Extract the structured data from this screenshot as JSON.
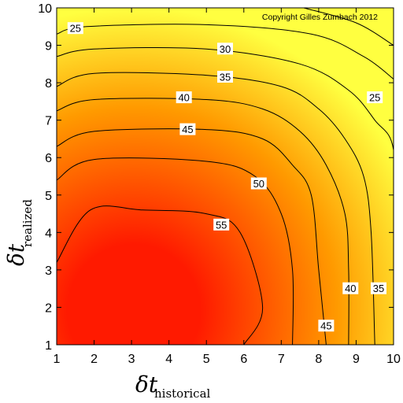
{
  "chart_data": {
    "type": "heatmap",
    "subtype": "filled-contour",
    "title": "",
    "annotation": "Copyright Gilles Zumbach 2012",
    "xlabel": {
      "symbol": "δt",
      "subscript": "historical"
    },
    "ylabel": {
      "symbol": "δt",
      "subscript": "realized"
    },
    "xlim": [
      1,
      10
    ],
    "ylim": [
      1,
      10
    ],
    "xticks": [
      1,
      2,
      3,
      4,
      5,
      6,
      7,
      8,
      9,
      10
    ],
    "yticks": [
      1,
      2,
      3,
      4,
      5,
      6,
      7,
      8,
      9,
      10
    ],
    "grid": false,
    "colormap": {
      "low": "#ffff40",
      "mid": "#ff9a00",
      "high": "#ff1a00"
    },
    "value_range": [
      20,
      57
    ],
    "contour_levels": [
      {
        "level": 55,
        "label": "55",
        "label_at": [
          5.4,
          4.2
        ],
        "points": [
          [
            1.0,
            3.2
          ],
          [
            1.9,
            4.6
          ],
          [
            3.3,
            4.6
          ],
          [
            5.0,
            4.5
          ],
          [
            5.9,
            4.0
          ],
          [
            6.5,
            2.0
          ],
          [
            6.0,
            1.0
          ]
        ]
      },
      {
        "level": 50,
        "label": "50",
        "label_at": [
          6.4,
          5.3
        ],
        "points": [
          [
            1.0,
            5.4
          ],
          [
            2.0,
            5.95
          ],
          [
            5.0,
            5.9
          ],
          [
            6.3,
            5.5
          ],
          [
            7.0,
            4.5
          ],
          [
            7.3,
            3.0
          ],
          [
            7.3,
            1.0
          ]
        ]
      },
      {
        "level": 45,
        "label": "45",
        "label_at": [
          8.2,
          1.5
        ],
        "points": [
          [
            1.0,
            6.3
          ],
          [
            2.0,
            6.7
          ],
          [
            5.0,
            6.75
          ],
          [
            6.5,
            6.5
          ],
          [
            7.3,
            5.8
          ],
          [
            7.8,
            5.0
          ],
          [
            8.0,
            3.0
          ],
          [
            8.2,
            1.0
          ]
        ]
      },
      {
        "level": 45,
        "label": "45",
        "label_at": [
          4.5,
          6.75
        ],
        "points": []
      },
      {
        "level": 40,
        "label": "40",
        "label_at": [
          4.4,
          7.6
        ],
        "points": [
          [
            1.0,
            7.25
          ],
          [
            2.0,
            7.55
          ],
          [
            5.0,
            7.55
          ],
          [
            6.5,
            7.3
          ],
          [
            7.5,
            6.7
          ],
          [
            8.2,
            5.8
          ],
          [
            8.7,
            4.5
          ],
          [
            8.8,
            3.0
          ],
          [
            8.8,
            1.0
          ]
        ]
      },
      {
        "level": 40,
        "label": "40",
        "label_at": [
          8.85,
          2.5
        ],
        "points": []
      },
      {
        "level": 35,
        "label": "35",
        "label_at": [
          5.5,
          8.15
        ],
        "points": [
          [
            1.0,
            7.9
          ],
          [
            2.0,
            8.25
          ],
          [
            5.0,
            8.2
          ],
          [
            7.0,
            7.9
          ],
          [
            8.0,
            7.3
          ],
          [
            8.7,
            6.5
          ],
          [
            9.2,
            5.5
          ],
          [
            9.4,
            4.0
          ],
          [
            9.5,
            1.0
          ]
        ]
      },
      {
        "level": 35,
        "label": "35",
        "label_at": [
          9.6,
          2.5
        ],
        "points": []
      },
      {
        "level": 30,
        "label": "30",
        "label_at": [
          5.5,
          8.9
        ],
        "points": [
          [
            1.0,
            8.7
          ],
          [
            2.0,
            8.9
          ],
          [
            5.0,
            8.9
          ],
          [
            7.5,
            8.5
          ],
          [
            8.8,
            7.8
          ],
          [
            9.5,
            7.0
          ],
          [
            10.0,
            6.2
          ],
          [
            10.0,
            3.8
          ]
        ]
      },
      {
        "level": 25,
        "label": "25",
        "label_at": [
          9.5,
          7.6
        ],
        "points": [
          [
            1.0,
            9.3
          ],
          [
            1.8,
            9.5
          ],
          [
            5.0,
            9.55
          ],
          [
            7.8,
            9.3
          ],
          [
            9.2,
            8.7
          ],
          [
            10.0,
            8.1
          ]
        ]
      },
      {
        "level": 25,
        "label": "25",
        "label_at": [
          1.5,
          9.45
        ],
        "points": []
      },
      {
        "level": 20,
        "label": "",
        "label_at": null,
        "points": [
          [
            7.6,
            10.0
          ],
          [
            9.0,
            9.6
          ],
          [
            10.0,
            9.0
          ]
        ]
      }
    ]
  }
}
